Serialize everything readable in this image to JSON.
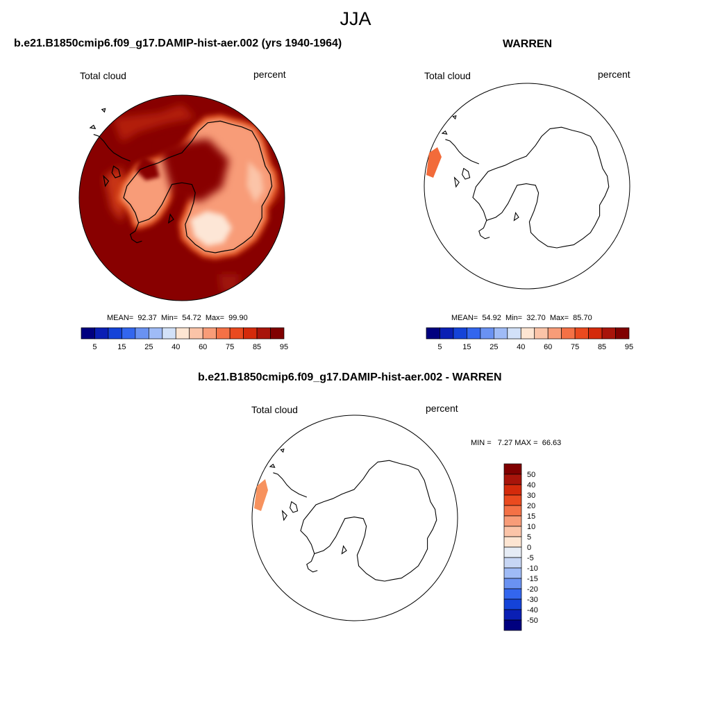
{
  "figure": {
    "season": "JJA"
  },
  "panels": [
    {
      "title": "b.e21.B1850cmip6.f09_g17.DAMIP-hist-aer.002 (yrs 1940-1964)",
      "left_label": "Total cloud",
      "right_label": "percent",
      "stats": "MEAN=  92.37  Min=  54.72  Max=  99.90"
    },
    {
      "title": "WARREN",
      "left_label": "Total cloud",
      "right_label": "percent",
      "stats": "MEAN=  54.92  Min=  32.70  Max=  85.70"
    },
    {
      "title": "b.e21.B1850cmip6.f09_g17.DAMIP-hist-aer.002 - WARREN",
      "left_label": "Total cloud",
      "right_label": "percent",
      "stats": "MIN =   7.27 MAX =  66.63"
    }
  ],
  "colorbar_abs": {
    "colors": [
      "#00007f",
      "#0a1fb4",
      "#1443d8",
      "#3366ee",
      "#6a92f2",
      "#9fbbf6",
      "#d2e1f8",
      "#fde5d2",
      "#fbc4a8",
      "#f89c78",
      "#f47146",
      "#ea4a1f",
      "#d42a0b",
      "#a8140a",
      "#800000"
    ],
    "tick_labels": [
      "5",
      "15",
      "25",
      "40",
      "60",
      "75",
      "85",
      "95"
    ]
  },
  "colorbar_diff": {
    "colors_top_to_bottom": [
      "#800000",
      "#a8140a",
      "#d42a0b",
      "#ea4a1f",
      "#f47146",
      "#f89c78",
      "#fbc4a8",
      "#fde5d2",
      "#e6ecf5",
      "#c7d6f4",
      "#9fbbf6",
      "#6a92f2",
      "#3366ee",
      "#1443d8",
      "#0a1fb4",
      "#00007f"
    ],
    "tick_labels": [
      "50",
      "40",
      "30",
      "20",
      "15",
      "10",
      "5",
      "0",
      "-5",
      "-10",
      "-15",
      "-20",
      "-30",
      "-40",
      "-50"
    ]
  },
  "map_style": {
    "fill_dark": "#880000",
    "ice_core": "#fde6d6",
    "coast_color": "#000000"
  }
}
